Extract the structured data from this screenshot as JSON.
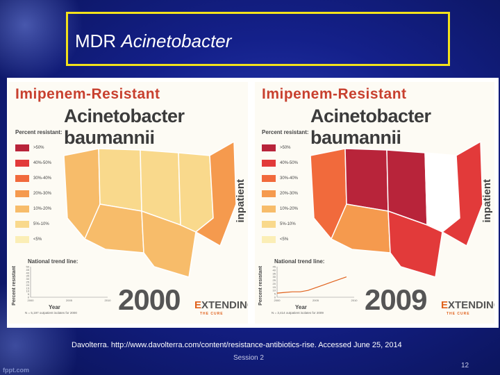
{
  "slide": {
    "title_prefix": "MDR ",
    "title_italic": "Acinetobacter",
    "citation": "Davolterra. http://www.davolterra.com/content/resistance-antibiotics-rise. Accessed June 25, 2014",
    "session": "Session 2",
    "page_number": "12",
    "watermark": "fppt.com"
  },
  "panels": [
    {
      "heading1": "Imipenem-Resistant",
      "heading2": "Acinetobacter baumannii",
      "legend_title": "Percent resistant:",
      "side_label": "inpatient",
      "trend_title": "National trend line:",
      "y_axis_label": "Percent resistant",
      "x_axis_label": "Year",
      "note": "N = 5,197 outpatient isolates for 2000",
      "year": "2000",
      "logo_rest": "XTENDING",
      "logo_sub": "THE CURE"
    },
    {
      "heading1": "Imipenem-Resistant",
      "heading2": "Acinetobacter baumannii",
      "legend_title": "Percent resistant:",
      "side_label": "inpatient",
      "trend_title": "National trend line:",
      "y_axis_label": "Percent resistant",
      "x_axis_label": "Year",
      "note": "N = 3,414 outpatient isolates for 2009",
      "year": "2009",
      "logo_rest": "XTENDING",
      "logo_sub": "THE CURE"
    }
  ],
  "legend": [
    {
      "label": ">50%",
      "color": "#b8243a"
    },
    {
      "label": "40%-50%",
      "color": "#e23a3a"
    },
    {
      "label": "30%-40%",
      "color": "#f16a3c"
    },
    {
      "label": "20%-30%",
      "color": "#f59a4e"
    },
    {
      "label": "10%-20%",
      "color": "#f7bc6a"
    },
    {
      "label": "5%-10%",
      "color": "#f9d98c"
    },
    {
      "label": "<5%",
      "color": "#fbeeb6"
    }
  ],
  "chart_data": [
    {
      "type": "line",
      "title": "National trend line:",
      "xlabel": "Year",
      "ylabel": "Percent resistant",
      "x_ticks": [
        "2000",
        "2005",
        "2010"
      ],
      "y_ticks": [
        50,
        45,
        40,
        35,
        30,
        25,
        20,
        15,
        10,
        5,
        0
      ],
      "ylim": [
        0,
        50
      ],
      "series": [
        {
          "x": [],
          "y": []
        }
      ]
    },
    {
      "type": "line",
      "title": "National trend line:",
      "xlabel": "Year",
      "ylabel": "Percent resistant",
      "x_ticks": [
        "2000",
        "2005",
        "2010"
      ],
      "y_ticks": [
        45,
        40,
        35,
        30,
        25,
        20,
        15,
        10,
        5,
        0
      ],
      "ylim": [
        0,
        45
      ],
      "series": [
        {
          "x": [
            2000,
            2001,
            2002,
            2003,
            2004,
            2005,
            2006,
            2007,
            2008,
            2009
          ],
          "y": [
            6,
            7,
            8,
            8,
            10,
            14,
            18,
            22,
            26,
            30
          ]
        }
      ]
    }
  ],
  "maps": {
    "panel_2000_regions": [
      "#f7bc6a",
      "#f9d98c",
      "#f7bc6a",
      "#f9d98c",
      "#f7bc6a",
      "#f9d98c",
      "#f59a4e"
    ],
    "panel_2009_regions": [
      "#f16a3c",
      "#b8243a",
      "#f59a4e",
      "#b8243a",
      "#e23a3a",
      "#ffffff",
      "#e23a3a"
    ]
  }
}
